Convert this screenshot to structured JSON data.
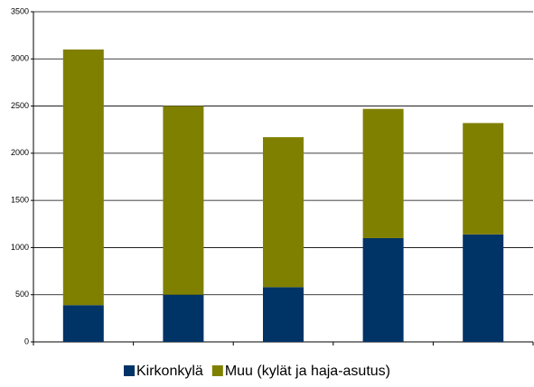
{
  "chart_data": {
    "type": "stacked_bar",
    "categories": [
      null,
      null,
      null,
      null,
      null
    ],
    "series": [
      {
        "name": "Kirkonkylä",
        "color": "#003366",
        "values": [
          390,
          500,
          580,
          1100,
          1140
        ]
      },
      {
        "name": "Muu (kylät ja haja-asutus)",
        "color": "#808000",
        "values": [
          2710,
          2000,
          1590,
          1370,
          1180
        ]
      }
    ],
    "ylim": [
      0,
      3500
    ],
    "yticks": [
      0,
      500,
      1000,
      1500,
      2000,
      2500,
      3000,
      3500
    ],
    "grid": true,
    "legend": "bottom"
  }
}
